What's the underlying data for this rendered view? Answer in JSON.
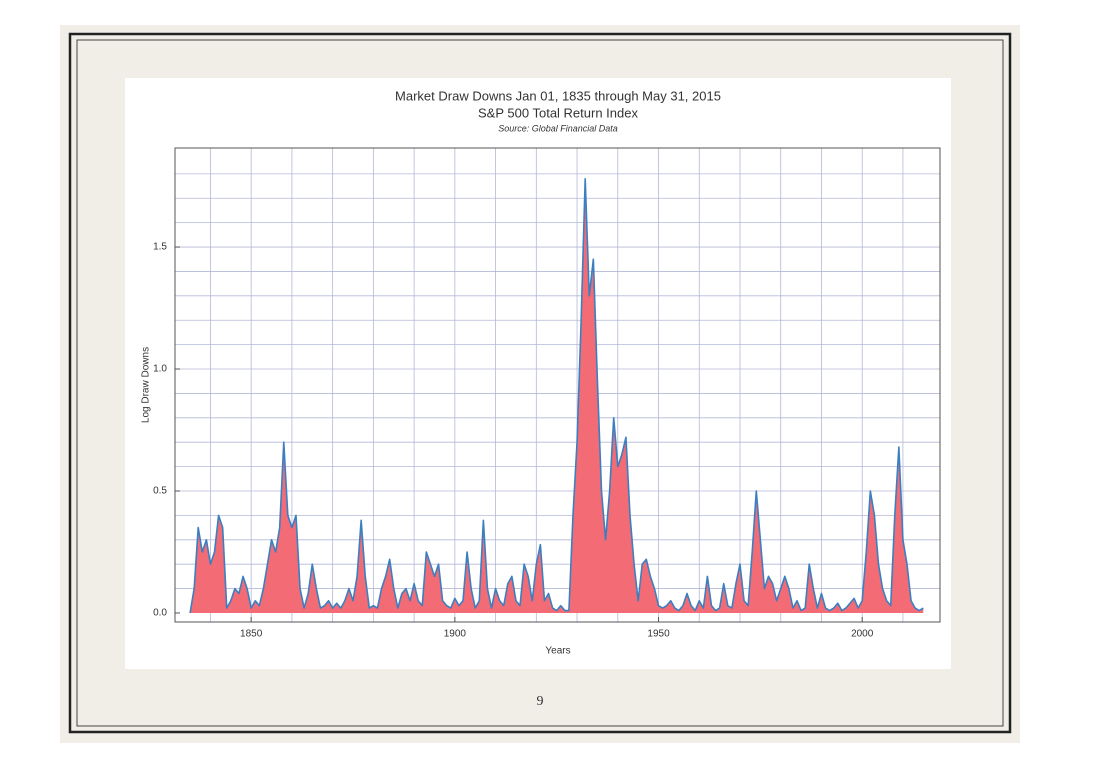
{
  "page_number": "9",
  "chart_data": {
    "type": "area",
    "title": "Market Draw Downs Jan 01, 1835 through May 31, 2015",
    "subtitle": "S&P 500 Total Return Index",
    "source": "Source: Global Financial Data",
    "xlabel": "Years",
    "ylabel": "Log Draw Downs",
    "color": "#3c7fc1",
    "fill_color": "#f26b75",
    "xlim": [
      1831.3,
      2019.1
    ],
    "ylim": [
      -0.037,
      1.906
    ],
    "xticks": [
      1850,
      1900,
      1950,
      2000
    ],
    "yticks": [
      {
        "value": 0,
        "label": "0.0"
      },
      0.5,
      {
        "value": 1,
        "label": "1.0"
      },
      1.5
    ],
    "grid": true,
    "xgrid": [
      1840,
      1850,
      1860,
      1870,
      1880,
      1890,
      1900,
      1910,
      1920,
      1930,
      1940,
      1950,
      1960,
      1970,
      1980,
      1990,
      2000,
      2010
    ],
    "ygrid": [
      0.1,
      0.2,
      0.3,
      0.4,
      0.5,
      0.6,
      0.7,
      0.8,
      0.9,
      1.0,
      1.1,
      1.2,
      1.3,
      1.4,
      1.5,
      1.6,
      1.7,
      1.8
    ],
    "x": [
      1835,
      1836,
      1837,
      1838,
      1839,
      1840,
      1841,
      1842,
      1843,
      1844,
      1845,
      1846,
      1847,
      1848,
      1849,
      1850,
      1851,
      1852,
      1853,
      1854,
      1855,
      1856,
      1857,
      1858,
      1859,
      1860,
      1861,
      1862,
      1863,
      1864,
      1865,
      1866,
      1867,
      1868,
      1869,
      1870,
      1871,
      1872,
      1873,
      1874,
      1875,
      1876,
      1877,
      1878,
      1879,
      1880,
      1881,
      1882,
      1883,
      1884,
      1885,
      1886,
      1887,
      1888,
      1889,
      1890,
      1891,
      1892,
      1893,
      1894,
      1895,
      1896,
      1897,
      1898,
      1899,
      1900,
      1901,
      1902,
      1903,
      1904,
      1905,
      1906,
      1907,
      1908,
      1909,
      1910,
      1911,
      1912,
      1913,
      1914,
      1915,
      1916,
      1917,
      1918,
      1919,
      1920,
      1921,
      1922,
      1923,
      1924,
      1925,
      1926,
      1927,
      1928,
      1929,
      1930,
      1931,
      1932,
      1933,
      1934,
      1935,
      1936,
      1937,
      1938,
      1939,
      1940,
      1941,
      1942,
      1943,
      1944,
      1945,
      1946,
      1947,
      1948,
      1949,
      1950,
      1951,
      1952,
      1953,
      1954,
      1955,
      1956,
      1957,
      1958,
      1959,
      1960,
      1961,
      1962,
      1963,
      1964,
      1965,
      1966,
      1967,
      1968,
      1969,
      1970,
      1971,
      1972,
      1973,
      1974,
      1975,
      1976,
      1977,
      1978,
      1979,
      1980,
      1981,
      1982,
      1983,
      1984,
      1985,
      1986,
      1987,
      1988,
      1989,
      1990,
      1991,
      1992,
      1993,
      1994,
      1995,
      1996,
      1997,
      1998,
      1999,
      2000,
      2001,
      2002,
      2003,
      2004,
      2005,
      2006,
      2007,
      2008,
      2009,
      2010,
      2011,
      2012,
      2013,
      2014,
      2015
    ],
    "values": [
      0,
      0.1,
      0.35,
      0.25,
      0.3,
      0.2,
      0.25,
      0.4,
      0.35,
      0.02,
      0.05,
      0.1,
      0.08,
      0.15,
      0.1,
      0.02,
      0.05,
      0.03,
      0.1,
      0.2,
      0.3,
      0.25,
      0.35,
      0.7,
      0.4,
      0.35,
      0.4,
      0.1,
      0.02,
      0.08,
      0.2,
      0.1,
      0.02,
      0.03,
      0.05,
      0.02,
      0.04,
      0.02,
      0.05,
      0.1,
      0.05,
      0.15,
      0.38,
      0.15,
      0.02,
      0.03,
      0.02,
      0.1,
      0.15,
      0.22,
      0.1,
      0.02,
      0.08,
      0.1,
      0.05,
      0.12,
      0.05,
      0.03,
      0.25,
      0.2,
      0.15,
      0.2,
      0.05,
      0.03,
      0.02,
      0.06,
      0.03,
      0.05,
      0.25,
      0.1,
      0.02,
      0.05,
      0.38,
      0.1,
      0.02,
      0.1,
      0.05,
      0.03,
      0.12,
      0.15,
      0.05,
      0.03,
      0.2,
      0.15,
      0.05,
      0.2,
      0.28,
      0.05,
      0.08,
      0.02,
      0.01,
      0.03,
      0.01,
      0.01,
      0.4,
      0.7,
      1.2,
      1.78,
      1.3,
      1.45,
      0.95,
      0.5,
      0.3,
      0.5,
      0.8,
      0.6,
      0.65,
      0.72,
      0.4,
      0.2,
      0.05,
      0.2,
      0.22,
      0.15,
      0.1,
      0.03,
      0.02,
      0.03,
      0.05,
      0.02,
      0.01,
      0.03,
      0.08,
      0.03,
      0.01,
      0.05,
      0.02,
      0.15,
      0.03,
      0.01,
      0.02,
      0.12,
      0.03,
      0.02,
      0.12,
      0.2,
      0.05,
      0.03,
      0.25,
      0.5,
      0.3,
      0.1,
      0.15,
      0.12,
      0.05,
      0.1,
      0.15,
      0.1,
      0.02,
      0.05,
      0.01,
      0.02,
      0.2,
      0.1,
      0.02,
      0.08,
      0.02,
      0.01,
      0.02,
      0.04,
      0.01,
      0.02,
      0.04,
      0.06,
      0.02,
      0.05,
      0.25,
      0.5,
      0.4,
      0.2,
      0.1,
      0.05,
      0.03,
      0.4,
      0.68,
      0.3,
      0.2,
      0.05,
      0.02,
      0.01,
      0.02
    ]
  }
}
